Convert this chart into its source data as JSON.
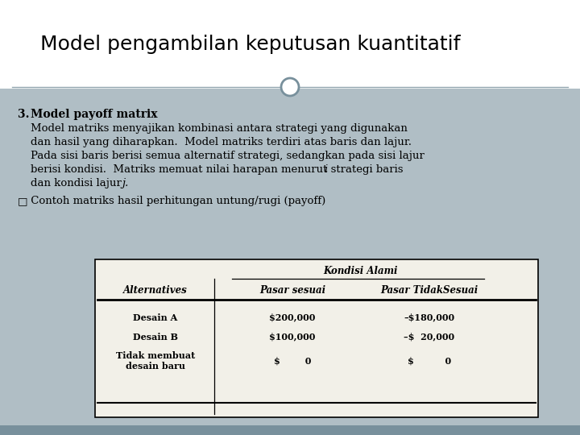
{
  "title": "Model pengambilan keputusan kuantitatif",
  "title_fontsize": 18,
  "title_font": "Georgia",
  "slide_bg": "#b0bec5",
  "header_bg": "#ffffff",
  "heading_num": "3. ",
  "heading_text": "Model payoff matrix",
  "heading_fontsize": 10,
  "body_lines": [
    "Model matriks menyajikan kombinasi antara strategi yang digunakan",
    "dan hasil yang diharapkan.  Model matriks terdiri atas baris dan lajur.",
    "Pada sisi baris berisi semua alternatif strategi, sedangkan pada sisi lajur",
    "berisi kondisi.  Matriks memuat nilai harapan menurut strategi baris ",
    "dan kondisi lajur "
  ],
  "body_italic_i": "i",
  "body_italic_j": "j.",
  "body_fontsize": 9.5,
  "bullet_symbol": "□",
  "bullet_text": " Contoh matriks hasil perhitungan untung/rugi (payoff)",
  "bullet_fontsize": 9.5,
  "table_bg": "#f2f0e8",
  "table_header": "Kondisi Alami",
  "col_headers": [
    "Alternatives",
    "Pasar sesuai",
    "Pasar TidakSesuai"
  ],
  "rows": [
    [
      "Desain A",
      "$200,000",
      "–$180,000"
    ],
    [
      "Desain B",
      "$100,000",
      "–$  20,000"
    ],
    [
      "Tidak membuat\ndesain baru",
      "$        0",
      "$          0"
    ]
  ],
  "divider_color": "#90a4ae",
  "circle_edge": "#78909c",
  "bottom_bar": "#78909c"
}
